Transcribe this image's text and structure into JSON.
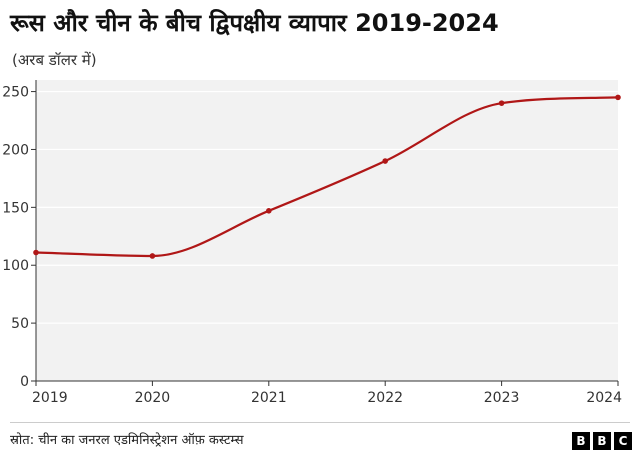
{
  "header": {
    "title": "रूस और चीन के बीच द्विपक्षीय व्यापार 2019-2024",
    "subtitle": "(अरब डॉलर में)"
  },
  "footer": {
    "source": "स्रोत: चीन का जनरल एडमिनिस्ट्रेशन ऑफ़ कस्टम्स",
    "logo_letters": [
      "B",
      "B",
      "C"
    ]
  },
  "chart_data": {
    "type": "line",
    "x": [
      2019,
      2020,
      2021,
      2022,
      2023,
      2024
    ],
    "series": [
      {
        "values": [
          111,
          108,
          147,
          190,
          240,
          245
        ]
      }
    ],
    "y_ticks": [
      0,
      50,
      100,
      150,
      200,
      250
    ],
    "x_ticks": [
      "2019",
      "2020",
      "2021",
      "2022",
      "2023",
      "2024"
    ],
    "ylim": [
      0,
      260
    ],
    "grid": true,
    "colors": {
      "line": "#b01717",
      "plot_background": "#f2f2f2",
      "grid": "#ffffff",
      "axis": "#333333"
    }
  }
}
